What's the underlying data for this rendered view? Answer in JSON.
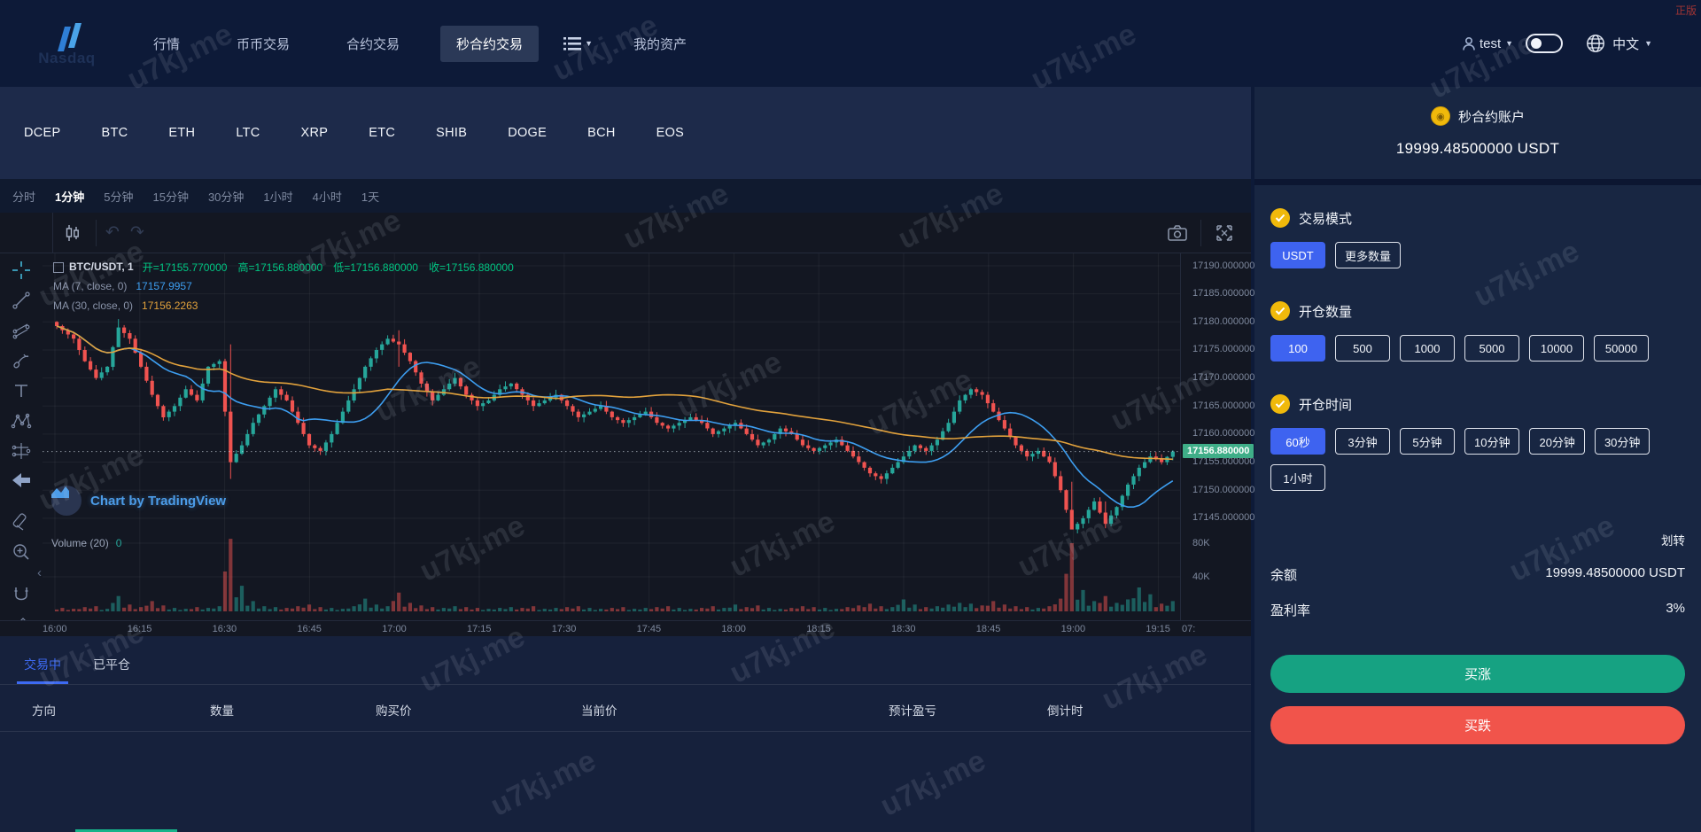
{
  "watermark": {
    "text": "u7kj.me",
    "corner_tag": "正版"
  },
  "nav": {
    "logo": "Nasdaq",
    "items_before_menu": [
      "行情",
      "币币交易",
      "合约交易",
      "秒合约交易"
    ],
    "active_item": "秒合约交易",
    "item_after_menu": "我的资产",
    "user": "test",
    "lang": "中文"
  },
  "coin_tabs": [
    "DCEP",
    "BTC",
    "ETH",
    "LTC",
    "XRP",
    "ETC",
    "SHIB",
    "DOGE",
    "BCH",
    "EOS"
  ],
  "intervals": {
    "items": [
      "分时",
      "1分钟",
      "5分钟",
      "15分钟",
      "30分钟",
      "1小时",
      "4小时",
      "1天"
    ],
    "active": "1分钟"
  },
  "chart": {
    "legend": {
      "pair": "BTC/USDT, 1",
      "ohlc": [
        "开=17155.770000",
        "高=17156.880000",
        "低=17156.880000",
        "收=17156.880000"
      ]
    },
    "ma7_label": "MA (7, close, 0)",
    "ma7_value": "17157.9957",
    "ma30_label": "MA (30, close, 0)",
    "ma30_value": "17156.2263",
    "volume_label": "Volume (20)",
    "volume_value": "0",
    "tradingview_attribution": "Chart by TradingView",
    "price_ticks": [
      "17190.000000",
      "17185.000000",
      "17180.000000",
      "17175.000000",
      "17170.000000",
      "17165.000000",
      "17160.000000",
      "17155.000000",
      "17150.000000",
      "17145.000000"
    ],
    "volume_ticks": [
      "80K",
      "40K"
    ],
    "time_ticks": [
      "16:00",
      "16:15",
      "16:30",
      "16:45",
      "17:00",
      "17:15",
      "17:30",
      "17:45",
      "18:00",
      "18:15",
      "18:30",
      "18:45",
      "19:00",
      "19:15",
      "07:"
    ],
    "last_price_label": "17156.880000"
  },
  "chart_data": {
    "type": "candlestick",
    "symbol": "BTC/USDT",
    "interval": "1分钟",
    "x_start": "16:00",
    "x_end": "19:18",
    "sample_step_minutes": 2,
    "first_open": 17180,
    "closes": [
      17178.5,
      17177,
      17173,
      17170,
      17172,
      17179,
      17177,
      17172,
      17167,
      17163,
      17165,
      17168,
      17166,
      17172,
      17173,
      17155,
      17158,
      17162,
      17165,
      17168,
      17166,
      17162,
      17158,
      17157,
      17160,
      17164,
      17168,
      17172,
      17175,
      17177,
      17176,
      17173,
      17169,
      17166,
      17168,
      17170,
      17167,
      17165,
      17166,
      17168,
      17169,
      17167,
      17165,
      17166,
      17167,
      17165,
      17163,
      17164,
      17165,
      17163,
      17162,
      17163,
      17164,
      17162,
      17161,
      17162,
      17163,
      17162,
      17160,
      17161,
      17162,
      17160,
      17158,
      17159,
      17161,
      17160,
      17158,
      17157,
      17158,
      17159,
      17157,
      17155,
      17153,
      17152,
      17154,
      17156,
      17158,
      17157,
      17159,
      17162,
      17166,
      17168,
      17167,
      17164,
      17161,
      17158,
      17156,
      17157,
      17155,
      17150,
      17143,
      17145,
      17148,
      17144,
      17147,
      17151,
      17154,
      17156,
      17155,
      17156.88
    ],
    "volumes_k": [
      4,
      3,
      5,
      6,
      3,
      18,
      8,
      5,
      12,
      7,
      4,
      3,
      5,
      4,
      6,
      85,
      30,
      12,
      6,
      5,
      4,
      6,
      8,
      5,
      4,
      3,
      6,
      15,
      8,
      6,
      22,
      10,
      7,
      5,
      4,
      6,
      5,
      4,
      3,
      4,
      5,
      4,
      6,
      3,
      4,
      5,
      6,
      4,
      3,
      4,
      5,
      3,
      4,
      5,
      6,
      4,
      3,
      4,
      6,
      4,
      8,
      5,
      7,
      4,
      3,
      4,
      6,
      5,
      4,
      3,
      5,
      7,
      9,
      6,
      5,
      14,
      8,
      5,
      6,
      8,
      10,
      9,
      7,
      12,
      8,
      6,
      5,
      4,
      6,
      15,
      80,
      25,
      12,
      18,
      10,
      14,
      28,
      20,
      9,
      12
    ],
    "wick_overrides": {
      "5": [
        17180.5,
        17175.5
      ],
      "15": [
        17176,
        17152
      ],
      "30": [
        17178.5,
        17172
      ],
      "90": [
        17151.5,
        17143
      ],
      "93": [
        17148,
        17143.2
      ]
    },
    "last_price": 17156.88,
    "price_axis_min": 17141,
    "price_axis_max": 17192.5,
    "volume_axis_max_k": 90,
    "indicators": [
      {
        "name": "MA7",
        "window": 7,
        "color": "#3d9ef0",
        "last_value": 17157.9957
      },
      {
        "name": "MA30",
        "window": 30,
        "color": "#e2a23c",
        "last_value": 17156.2263
      }
    ],
    "up_color": "#26a69a",
    "down_color": "#ef5350",
    "grid": true,
    "legend_position": "top-left"
  },
  "side_panel": {
    "account_title": "秒合约账户",
    "account_balance": "19999.48500000 USDT",
    "sections": [
      {
        "key": "mode",
        "title": "交易模式",
        "options": [
          "USDT",
          "更多数量"
        ],
        "active": "USDT"
      },
      {
        "key": "amount",
        "title": "开仓数量",
        "options": [
          "100",
          "500",
          "1000",
          "5000",
          "10000",
          "50000"
        ],
        "active": "100"
      },
      {
        "key": "duration",
        "title": "开仓时间",
        "options": [
          "60秒",
          "3分钟",
          "5分钟",
          "10分钟",
          "20分钟",
          "30分钟",
          "1小时"
        ],
        "active": "60秒"
      }
    ],
    "transfer_label": "划转",
    "balance_row": {
      "label": "余额",
      "value": "19999.48500000 USDT"
    },
    "profit_row": {
      "label": "盈利率",
      "value": "3%"
    },
    "buy_up_label": "买涨",
    "buy_down_label": "买跌"
  },
  "positions_panel": {
    "tabs": [
      "交易中",
      "已平仓"
    ],
    "active_tab": "交易中",
    "columns": [
      "方向",
      "数量",
      "购买价",
      "当前价",
      "预计盈亏",
      "倒计时"
    ]
  },
  "colors": {
    "accent_blue": "#3e63f0",
    "buy_green": "#16a282",
    "sell_red": "#f1544b",
    "gold": "#f0b90b",
    "candle_up": "#26a69a",
    "candle_down": "#ef5350"
  }
}
